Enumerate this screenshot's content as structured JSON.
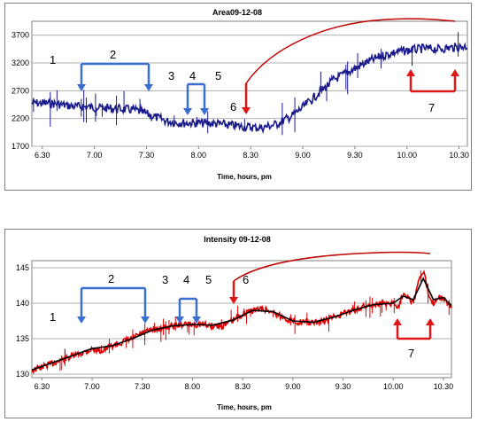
{
  "chart_data": [
    {
      "type": "line",
      "title": "Area09-12-08",
      "xlabel": "Time, hours, pm",
      "ylabel": "",
      "x_ticks": [
        "6.30",
        "7.00",
        "7.30",
        "8.00",
        "8.30",
        "9.00",
        "9.30",
        "10.00",
        "10.30"
      ],
      "y_ticks": [
        "1700",
        "2200",
        "2700",
        "3200",
        "3700"
      ],
      "xlim": [
        6.4,
        10.58
      ],
      "ylim": [
        1700,
        3950
      ],
      "grid": "horizontal",
      "series": [
        {
          "color": "#1a1a8c",
          "x": [
            6.4,
            6.6,
            6.8,
            7.0,
            7.2,
            7.4,
            7.55,
            7.7,
            7.85,
            8.0,
            8.15,
            8.3,
            8.45,
            8.6,
            8.75,
            8.9,
            9.0,
            9.15,
            9.3,
            9.45,
            9.6,
            9.75,
            9.9,
            10.0,
            10.15,
            10.3,
            10.45,
            10.58
          ],
          "y": [
            2480,
            2470,
            2420,
            2400,
            2380,
            2350,
            2250,
            2150,
            2120,
            2120,
            2110,
            2080,
            2050,
            2030,
            2100,
            2250,
            2400,
            2650,
            2900,
            3050,
            3200,
            3320,
            3400,
            3420,
            3460,
            3450,
            3480,
            3500
          ]
        }
      ],
      "annotations": [
        {
          "label": "1",
          "color": "#000000"
        },
        {
          "label": "2",
          "color": "#000000"
        },
        {
          "label": "3",
          "color": "#000000"
        },
        {
          "label": "4",
          "color": "#000000"
        },
        {
          "label": "5",
          "color": "#000000"
        },
        {
          "label": "6",
          "color": "#000000"
        },
        {
          "label": "7",
          "color": "#000000"
        }
      ]
    },
    {
      "type": "line",
      "title": "Intensity 09-12-08",
      "xlabel": "Time, hours, pm",
      "ylabel": "",
      "x_ticks": [
        "6.30",
        "7.00",
        "7.30",
        "8.00",
        "8.30",
        "9.00",
        "9.30",
        "10.00",
        "10.30"
      ],
      "y_ticks": [
        "130",
        "135",
        "140",
        "145"
      ],
      "xlim": [
        6.4,
        10.58
      ],
      "ylim": [
        129.5,
        146
      ],
      "grid": "horizontal",
      "series": [
        {
          "color": "#e00000",
          "x": [
            6.4,
            6.5,
            6.6,
            6.7,
            6.8,
            6.9,
            7.0,
            7.1,
            7.2,
            7.3,
            7.4,
            7.5,
            7.6,
            7.7,
            7.8,
            7.9,
            8.0,
            8.1,
            8.2,
            8.3,
            8.4,
            8.5,
            8.6,
            8.7,
            8.8,
            8.9,
            9.0,
            9.1,
            9.2,
            9.3,
            9.4,
            9.5,
            9.6,
            9.7,
            9.8,
            9.9,
            10.0,
            10.05,
            10.1,
            10.15,
            10.2,
            10.25,
            10.3,
            10.35,
            10.4,
            10.45,
            10.5,
            10.58
          ],
          "y": [
            130.5,
            131.0,
            131.5,
            132.0,
            132.5,
            133.0,
            133.5,
            133.3,
            134.0,
            134.5,
            135.0,
            135.8,
            136.2,
            136.5,
            136.8,
            137.0,
            137.0,
            137.0,
            136.8,
            136.8,
            137.5,
            138.5,
            139.0,
            139.2,
            138.8,
            138.0,
            137.5,
            137.3,
            137.2,
            137.5,
            138.0,
            138.5,
            139.0,
            139.5,
            139.8,
            140.0,
            140.0,
            139.5,
            141.5,
            141.0,
            140.0,
            143.0,
            144.5,
            141.5,
            140.0,
            141.0,
            140.5,
            139.5
          ]
        },
        {
          "color": "#000000",
          "x": [
            6.4,
            6.6,
            6.8,
            7.0,
            7.2,
            7.4,
            7.6,
            7.8,
            8.0,
            8.2,
            8.4,
            8.6,
            8.8,
            9.0,
            9.2,
            9.4,
            9.6,
            9.8,
            10.0,
            10.1,
            10.2,
            10.3,
            10.4,
            10.5,
            10.58
          ],
          "y": [
            130.6,
            131.6,
            132.6,
            133.6,
            134.0,
            135.0,
            136.2,
            136.8,
            137.0,
            136.9,
            137.6,
            139.0,
            138.8,
            137.5,
            137.3,
            138.0,
            139.0,
            139.8,
            140.0,
            141.0,
            140.5,
            143.5,
            140.5,
            140.8,
            139.6
          ]
        }
      ],
      "annotations": [
        {
          "label": "1",
          "color": "#000000"
        },
        {
          "label": "2",
          "color": "#000000"
        },
        {
          "label": "3",
          "color": "#000000"
        },
        {
          "label": "4",
          "color": "#000000"
        },
        {
          "label": "5",
          "color": "#000000"
        },
        {
          "label": "6",
          "color": "#000000"
        },
        {
          "label": "7",
          "color": "#000000"
        }
      ]
    }
  ],
  "colors": {
    "blue_bracket": "#3a6fd0",
    "red_bracket": "#e01515",
    "red_curve": "#c00000",
    "grid": "#b0b0b0"
  }
}
